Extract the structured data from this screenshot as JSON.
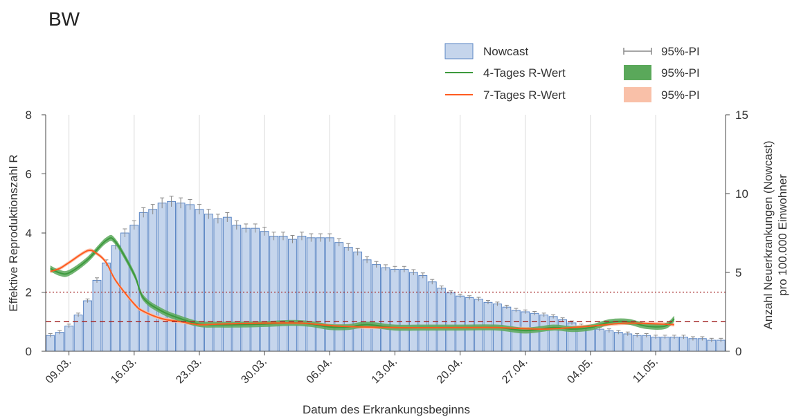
{
  "title": "BW",
  "chart_data": {
    "type": "bar",
    "xlabel": "Datum des Erkrankungsbeginns",
    "ylabel_left": "Effektive Reproduktionszahl R",
    "ylabel_right_line1": "Anzahl Neuerkrankungen (Nowcast)",
    "ylabel_right_line2": "pro 100.000 Einwohner",
    "ylim_left": [
      0,
      8
    ],
    "ylim_right": [
      0,
      15
    ],
    "yticks_left": [
      "0",
      "2",
      "4",
      "6",
      "8"
    ],
    "yticks_right": [
      "0",
      "5",
      "10",
      "15"
    ],
    "x_tick_labels": [
      "09.03.",
      "16.03.",
      "23.03.",
      "30.03.",
      "06.04.",
      "13.04.",
      "20.04.",
      "27.04.",
      "04.05.",
      "11.05."
    ],
    "grid": "vertical",
    "legend_position": "top-right",
    "legend": {
      "nowcast": "Nowcast",
      "r4": "4-Tages R-Wert",
      "r7": "7-Tages R-Wert",
      "pi_bar": "95%-PI",
      "pi_r4": "95%-PI",
      "pi_r7": "95%-PI"
    },
    "colors": {
      "bar_fill": "#c5d5ec",
      "bar_stroke": "#5b86c4",
      "r4": "#3c9a3c",
      "r4_band": "#5aa85a",
      "r7": "#ff5b1f",
      "r7_band": "#f9c0a8",
      "ref_line": "#a52a2a",
      "grid": "#d9d9d9"
    },
    "reference_lines": [
      {
        "value": 1,
        "style": "dashed"
      },
      {
        "value": 2,
        "style": "dotted"
      }
    ],
    "nowcast_start_date": "2020-03-07",
    "nowcast_per_100k": [
      1.0,
      1.2,
      1.6,
      2.3,
      3.2,
      4.5,
      5.6,
      6.7,
      7.5,
      8.0,
      8.8,
      9.0,
      9.4,
      9.5,
      9.4,
      9.3,
      9.0,
      8.7,
      8.4,
      8.5,
      8.0,
      7.8,
      7.8,
      7.6,
      7.3,
      7.3,
      7.1,
      7.3,
      7.2,
      7.2,
      7.2,
      6.9,
      6.6,
      6.3,
      5.8,
      5.5,
      5.3,
      5.2,
      5.2,
      5.0,
      4.8,
      4.4,
      4.0,
      3.7,
      3.5,
      3.4,
      3.3,
      3.1,
      3.0,
      2.8,
      2.6,
      2.5,
      2.4,
      2.3,
      2.2,
      2.0,
      1.8,
      1.6,
      1.5,
      1.4,
      1.3,
      1.2,
      1.1,
      1.0,
      1.0,
      0.9,
      0.9,
      0.9,
      0.9,
      0.8,
      0.8,
      0.7,
      0.7
    ],
    "r4_x": [
      "2020-03-07",
      "2020-03-08",
      "2020-03-09",
      "2020-03-11",
      "2020-03-13",
      "2020-03-14",
      "2020-03-16",
      "2020-03-17",
      "2020-03-19",
      "2020-03-21",
      "2020-03-23",
      "2020-03-25",
      "2020-03-27",
      "2020-03-30",
      "2020-04-02",
      "2020-04-04",
      "2020-04-06",
      "2020-04-08",
      "2020-04-10",
      "2020-04-13",
      "2020-04-16",
      "2020-04-20",
      "2020-04-24",
      "2020-04-27",
      "2020-04-30",
      "2020-05-02",
      "2020-05-04",
      "2020-05-06",
      "2020-05-08",
      "2020-05-10",
      "2020-05-12",
      "2020-05-13"
    ],
    "r4_y": [
      2.8,
      2.65,
      2.65,
      3.1,
      3.75,
      3.7,
      2.6,
      1.8,
      1.35,
      1.1,
      0.92,
      0.9,
      0.9,
      0.92,
      0.96,
      0.92,
      0.82,
      0.82,
      0.9,
      0.8,
      0.8,
      0.8,
      0.8,
      0.7,
      0.8,
      0.75,
      0.8,
      0.98,
      1.0,
      0.85,
      0.85,
      1.1
    ],
    "r7_x": [
      "2020-03-07",
      "2020-03-08",
      "2020-03-09",
      "2020-03-11",
      "2020-03-12",
      "2020-03-13",
      "2020-03-14",
      "2020-03-16",
      "2020-03-17",
      "2020-03-19",
      "2020-03-21",
      "2020-03-23",
      "2020-03-25",
      "2020-03-30",
      "2020-04-03",
      "2020-04-07",
      "2020-04-13",
      "2020-04-20",
      "2020-04-24",
      "2020-04-29",
      "2020-05-04",
      "2020-05-08",
      "2020-05-13"
    ],
    "r7_y": [
      2.7,
      2.8,
      3.0,
      3.4,
      3.3,
      3.0,
      2.4,
      1.6,
      1.35,
      1.1,
      1.0,
      0.9,
      0.92,
      0.95,
      0.95,
      0.85,
      0.8,
      0.8,
      0.8,
      0.75,
      0.85,
      0.95,
      0.9
    ]
  }
}
